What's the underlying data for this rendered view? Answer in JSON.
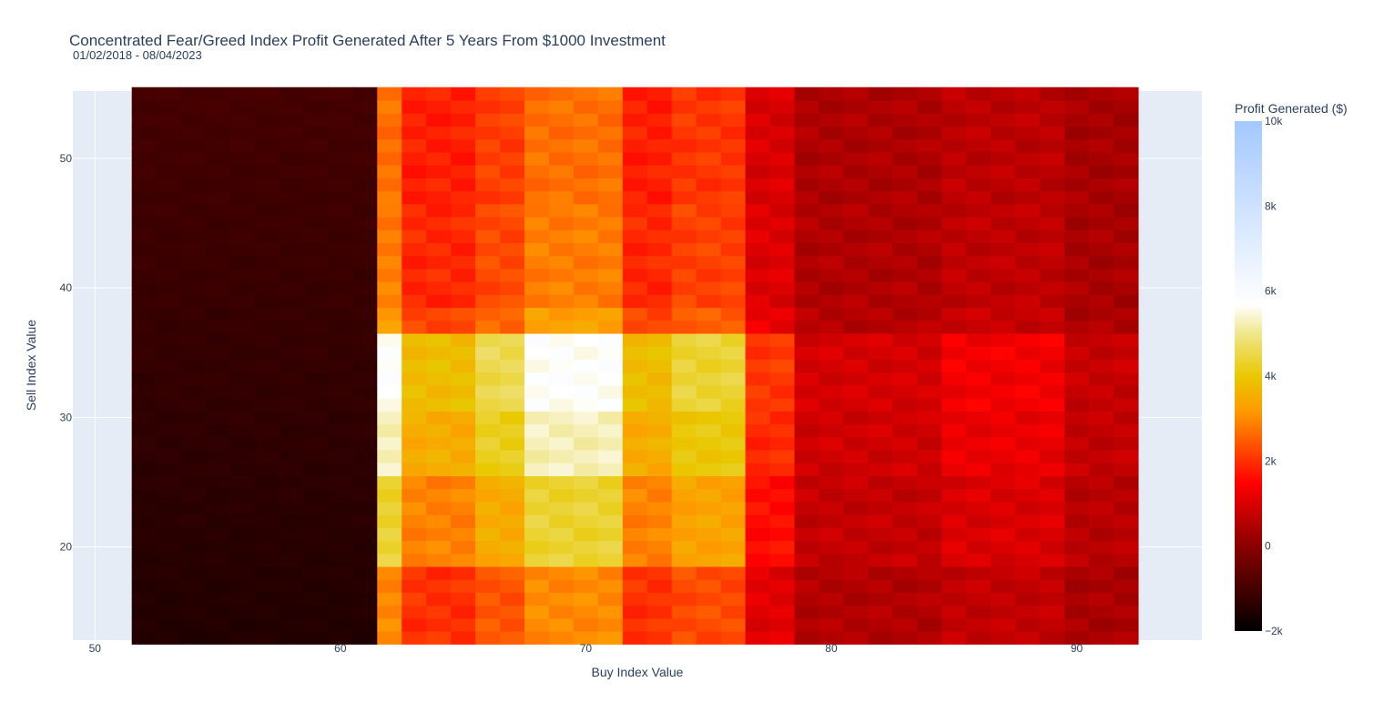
{
  "chart_data": {
    "type": "heatmap",
    "title": "Concentrated Fear/Greed Index Profit Generated After 5 Years From $1000 Investment",
    "subtitle": "01/02/2018 - 08/04/2023",
    "xlabel": "Buy Index Value",
    "ylabel": "Sell Index Value",
    "colorbar_title": "Profit Generated ($)",
    "xlim": [
      49.1,
      95.1
    ],
    "ylim": [
      12.8,
      55.2
    ],
    "x_ticks": [
      50,
      60,
      70,
      80,
      90
    ],
    "y_ticks": [
      20,
      30,
      40,
      50
    ],
    "colorbar": {
      "min": -2000,
      "max": 10000,
      "ticks": [
        -2000,
        0,
        2000,
        4000,
        6000,
        8000,
        10000
      ],
      "tick_labels": [
        "−2k",
        "0",
        "2k",
        "4k",
        "6k",
        "8k",
        "10k"
      ],
      "colorscale": [
        [
          0.0,
          "#000000"
        ],
        [
          0.167,
          "#8b0000"
        ],
        [
          0.29,
          "#ff0000"
        ],
        [
          0.43,
          "#ff9900"
        ],
        [
          0.5,
          "#e8c800"
        ],
        [
          0.583,
          "#f0e68c"
        ],
        [
          0.64,
          "#ffffff"
        ],
        [
          1.0,
          "#a3c8ff"
        ]
      ]
    },
    "x_range": [
      52,
      92
    ],
    "y_range": [
      13,
      55
    ],
    "x_blocks": [
      {
        "from": 52,
        "to": 61,
        "value": -1000
      },
      {
        "from": 62,
        "to": 62,
        "value": 3000
      },
      {
        "from": 63,
        "to": 65,
        "value": 2000
      },
      {
        "from": 66,
        "to": 67,
        "value": 2400
      },
      {
        "from": 68,
        "to": 71,
        "value": 3000
      },
      {
        "from": 72,
        "to": 73,
        "value": 2000
      },
      {
        "from": 74,
        "to": 76,
        "value": 2300
      },
      {
        "from": 77,
        "to": 78,
        "value": 1100
      },
      {
        "from": 79,
        "to": 84,
        "value": 500
      },
      {
        "from": 85,
        "to": 89,
        "value": 700
      },
      {
        "from": 90,
        "to": 92,
        "value": 400
      }
    ],
    "y_blocks": [
      {
        "from": 13,
        "to": 18,
        "factor": 1.0
      },
      {
        "from": 19,
        "to": 25,
        "factor": 1.45
      },
      {
        "from": 26,
        "to": 30,
        "factor": 1.75
      },
      {
        "from": 31,
        "to": 36,
        "factor": 1.9
      },
      {
        "from": 37,
        "to": 38,
        "factor": 1.1
      },
      {
        "from": 39,
        "to": 46,
        "factor": 0.95
      },
      {
        "from": 47,
        "to": 55,
        "factor": 0.9
      }
    ]
  }
}
